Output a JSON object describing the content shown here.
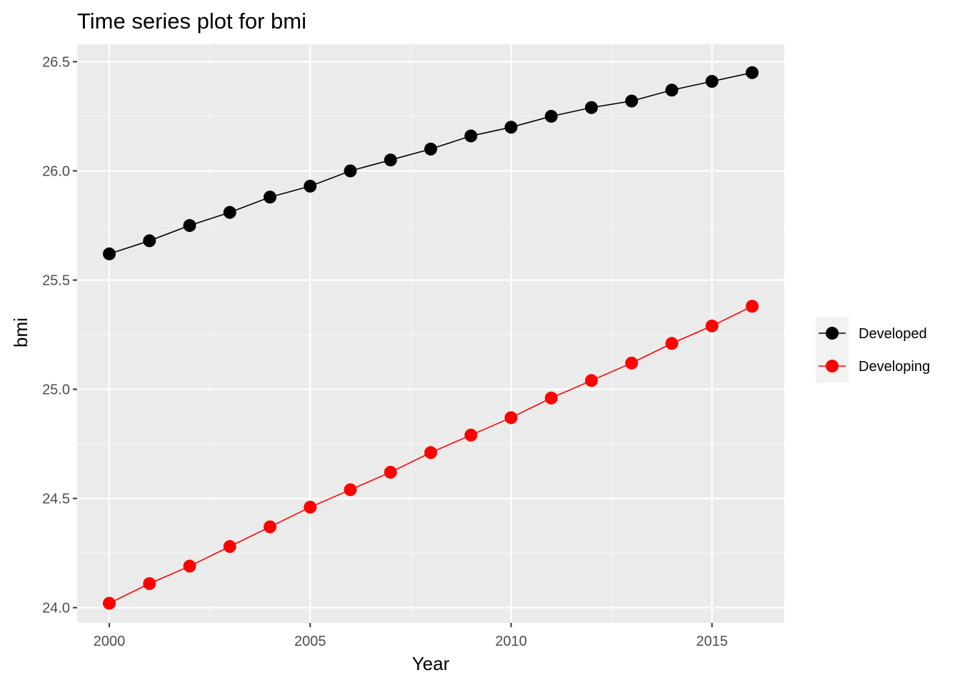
{
  "chart_data": {
    "type": "line",
    "title": "Time series plot for bmi",
    "xlabel": "Year",
    "ylabel": "bmi",
    "xlim": [
      1999.2,
      2016.8
    ],
    "ylim": [
      23.93,
      26.58
    ],
    "x_ticks": [
      2000,
      2005,
      2010,
      2015
    ],
    "x_tick_labels": [
      "2000",
      "2005",
      "2010",
      "2015"
    ],
    "y_ticks": [
      24.0,
      24.5,
      25.0,
      25.5,
      26.0,
      26.5
    ],
    "y_tick_labels": [
      "24.0",
      "24.5",
      "25.0",
      "25.5",
      "26.0",
      "26.5"
    ],
    "grid": true,
    "legend_position": "right",
    "x": [
      2000,
      2001,
      2002,
      2003,
      2004,
      2005,
      2006,
      2007,
      2008,
      2009,
      2010,
      2011,
      2012,
      2013,
      2014,
      2015,
      2016
    ],
    "series": [
      {
        "name": "Developed",
        "color": "#000000",
        "values": [
          25.62,
          25.68,
          25.75,
          25.81,
          25.88,
          25.93,
          26.0,
          26.05,
          26.1,
          26.16,
          26.2,
          26.25,
          26.29,
          26.32,
          26.37,
          26.41,
          26.45
        ]
      },
      {
        "name": "Developing",
        "color": "#ff0000",
        "values": [
          24.02,
          24.11,
          24.19,
          24.28,
          24.37,
          24.46,
          24.54,
          24.62,
          24.71,
          24.79,
          24.87,
          24.96,
          25.04,
          25.12,
          25.21,
          25.29,
          25.38
        ]
      }
    ],
    "colors": {
      "panel_background": "#ebebeb",
      "grid_major": "#ffffff",
      "grid_minor": "#f5f5f5",
      "legend_key_background": "#f2f2f2"
    }
  }
}
